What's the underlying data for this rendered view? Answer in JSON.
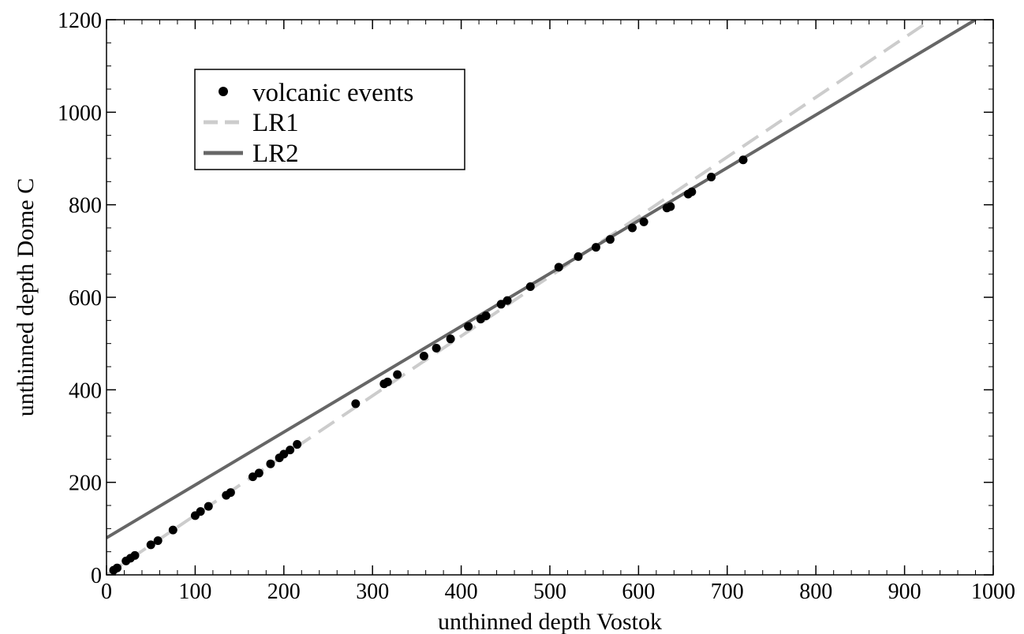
{
  "chart_data": {
    "type": "scatter",
    "xlabel": "unthinned depth Vostok",
    "ylabel": "unthinned depth Dome C",
    "xlim": [
      0,
      1000
    ],
    "ylim": [
      0,
      1200
    ],
    "x_ticks": [
      0,
      100,
      200,
      300,
      400,
      500,
      600,
      700,
      800,
      900,
      1000
    ],
    "y_ticks": [
      0,
      200,
      400,
      600,
      800,
      1000,
      1200
    ],
    "grid": false,
    "legend_position": "top-left",
    "legend": [
      {
        "label": "volcanic events",
        "style": "marker"
      },
      {
        "label": "LR1",
        "style": "dashed"
      },
      {
        "label": "LR2",
        "style": "solid"
      }
    ],
    "series": [
      {
        "name": "volcanic events",
        "kind": "points",
        "color": "#000000",
        "points": [
          [
            8,
            10
          ],
          [
            12,
            15
          ],
          [
            22,
            30
          ],
          [
            27,
            36
          ],
          [
            32,
            42
          ],
          [
            50,
            65
          ],
          [
            58,
            74
          ],
          [
            75,
            97
          ],
          [
            100,
            128
          ],
          [
            106,
            137
          ],
          [
            115,
            148
          ],
          [
            135,
            172
          ],
          [
            140,
            178
          ],
          [
            165,
            212
          ],
          [
            172,
            220
          ],
          [
            185,
            240
          ],
          [
            195,
            253
          ],
          [
            200,
            261
          ],
          [
            207,
            270
          ],
          [
            215,
            282
          ],
          [
            281,
            370
          ],
          [
            313,
            413
          ],
          [
            317,
            417
          ],
          [
            328,
            433
          ],
          [
            358,
            473
          ],
          [
            372,
            490
          ],
          [
            388,
            510
          ],
          [
            408,
            537
          ],
          [
            422,
            553
          ],
          [
            428,
            560
          ],
          [
            445,
            585
          ],
          [
            452,
            593
          ],
          [
            478,
            623
          ],
          [
            510,
            665
          ],
          [
            532,
            688
          ],
          [
            552,
            708
          ],
          [
            568,
            725
          ],
          [
            593,
            750
          ],
          [
            606,
            763
          ],
          [
            632,
            793
          ],
          [
            636,
            796
          ],
          [
            656,
            823
          ],
          [
            660,
            828
          ],
          [
            682,
            860
          ],
          [
            718,
            897
          ]
        ]
      },
      {
        "name": "LR1",
        "kind": "dashed-line",
        "color": "#cccccc",
        "x": [
          0,
          930
        ],
        "y": [
          0,
          1200
        ]
      },
      {
        "name": "LR2",
        "kind": "solid-line",
        "color": "#666666",
        "x": [
          0,
          980
        ],
        "y": [
          80,
          1200
        ]
      }
    ]
  }
}
